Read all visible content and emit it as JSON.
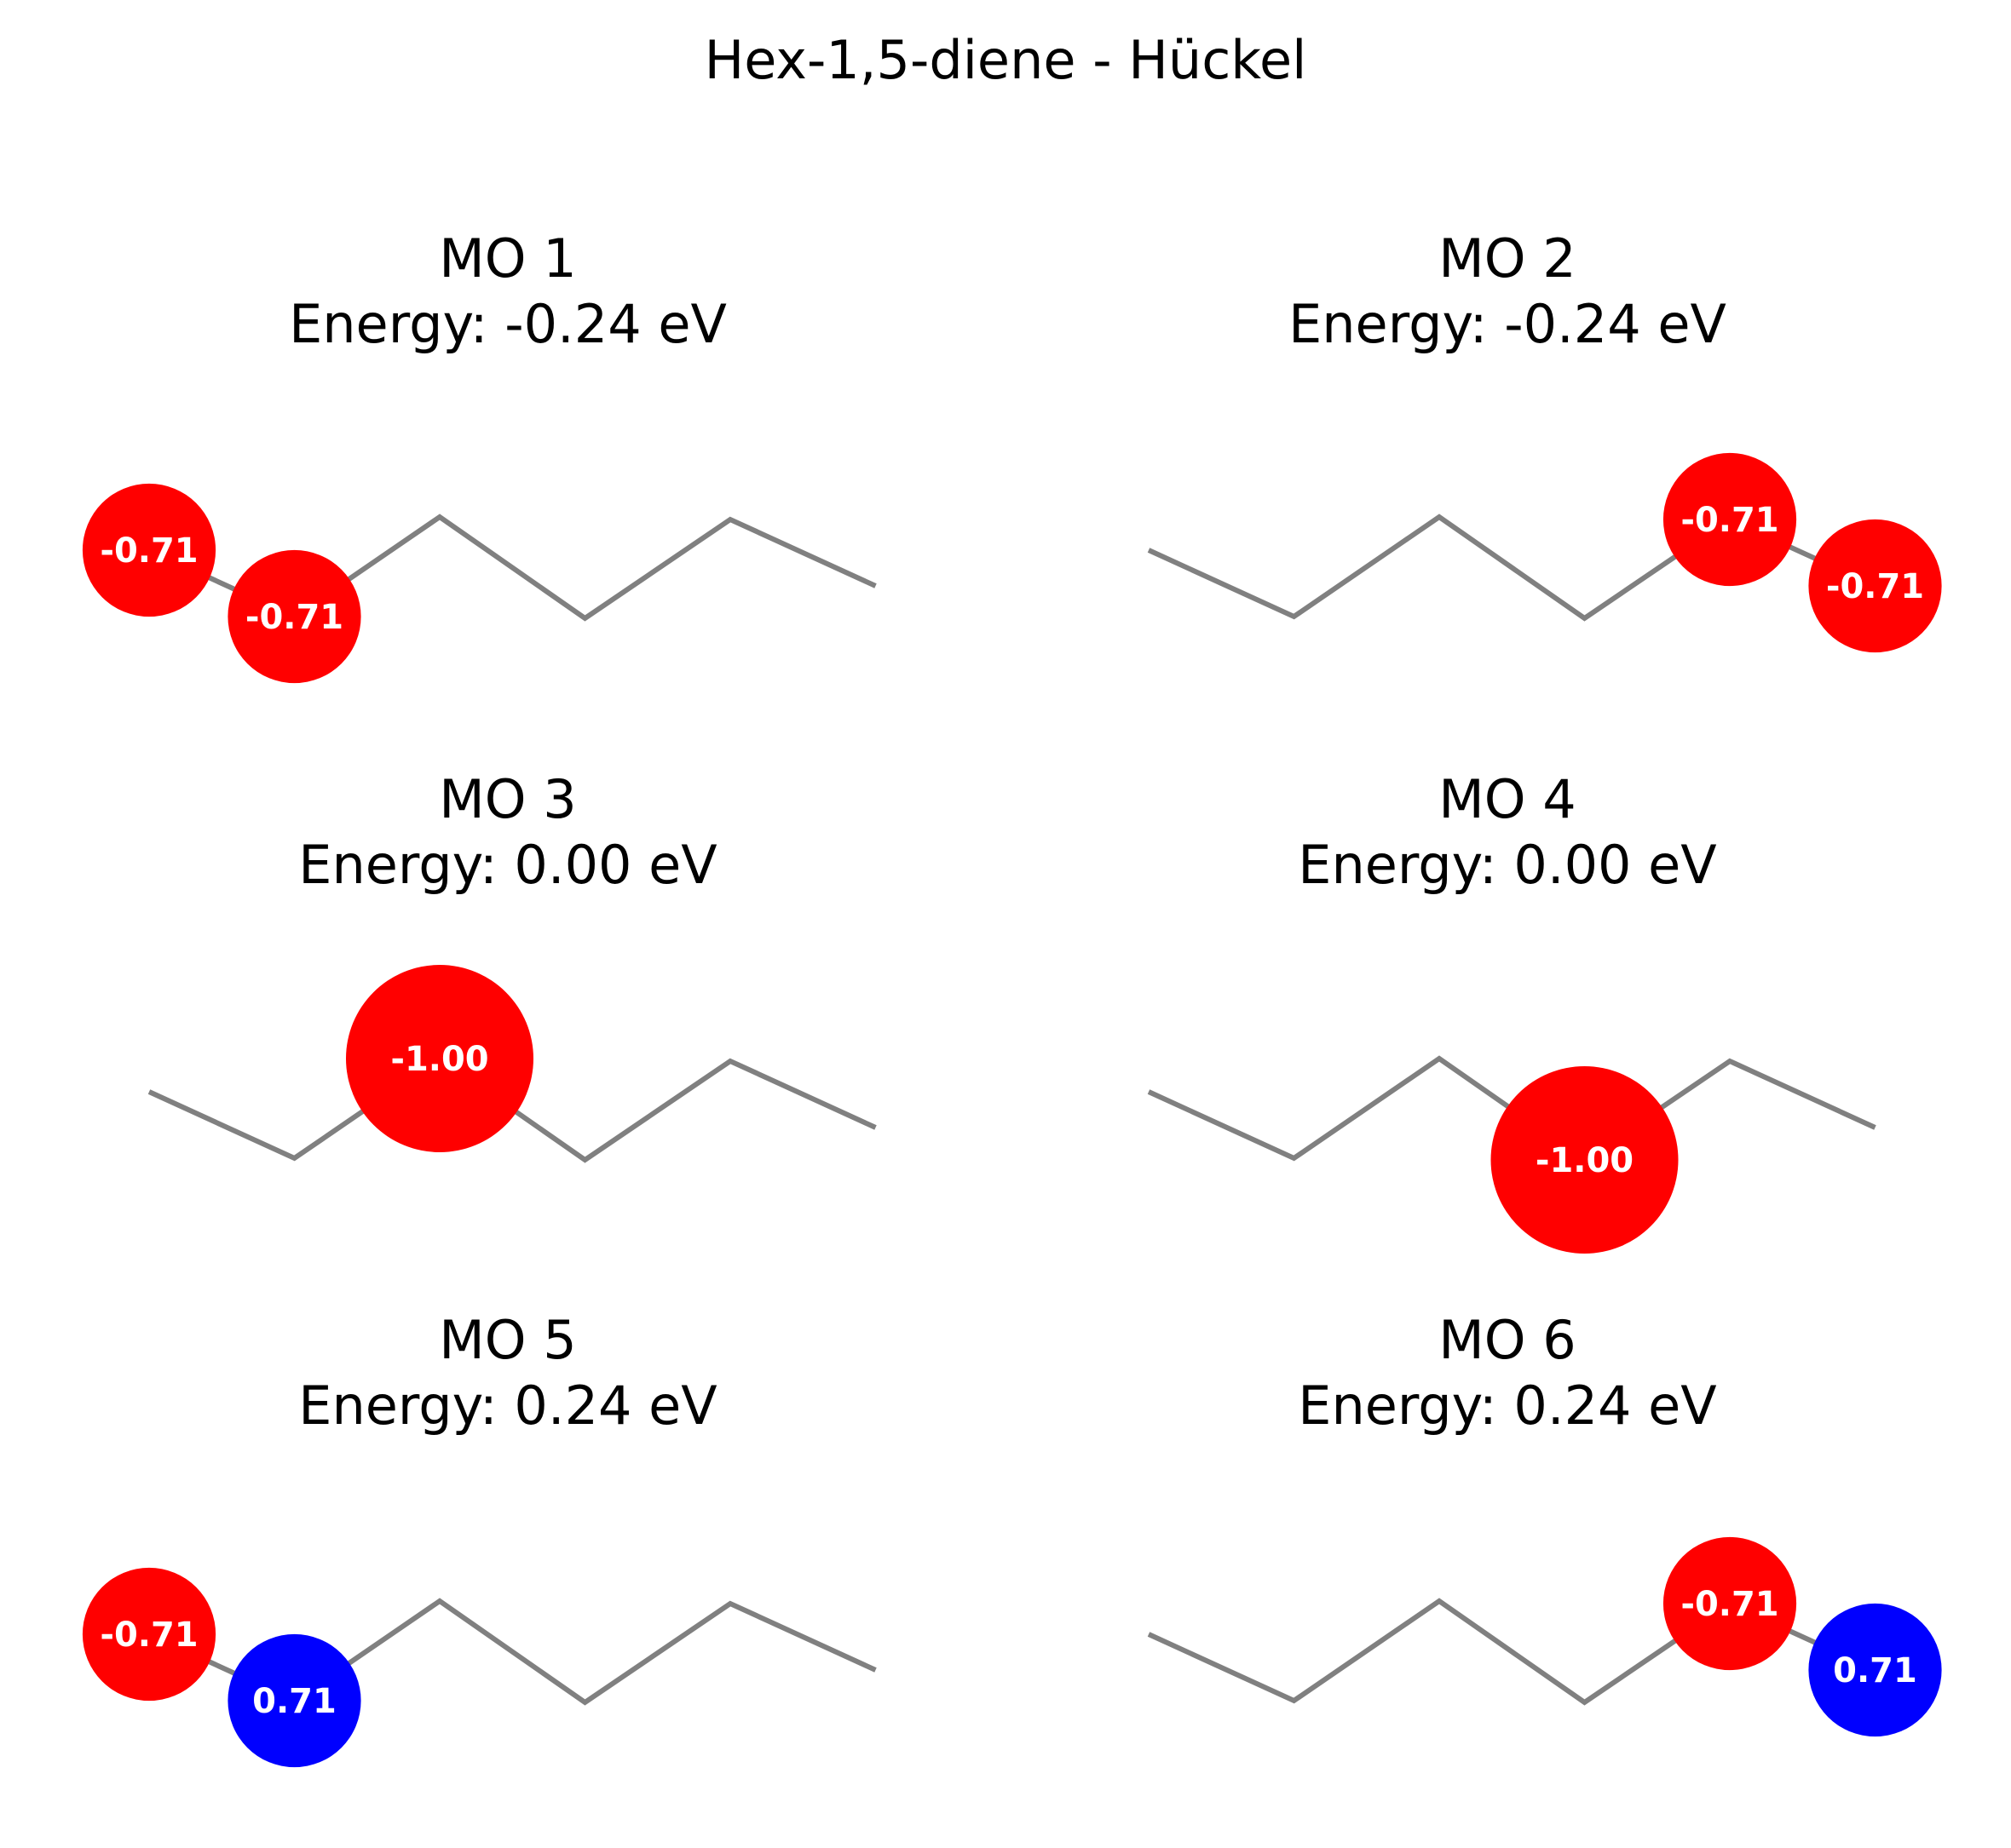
{
  "figure": {
    "title": "Hex-1,5-diene - Hückel"
  },
  "colors": {
    "negative": "#ff0000",
    "positive": "#0000ff",
    "bond": "#808080",
    "label": "#ffffff"
  },
  "orbitals": [
    {
      "title_line1": "MO 1",
      "title_line2": "Energy: -0.24 eV",
      "energy_ev": -0.24,
      "coefficients": [
        -0.71,
        -0.71,
        0.0,
        0.0,
        0.0,
        0.0
      ],
      "labels": [
        "-0.71",
        "-0.71",
        "",
        "",
        "",
        ""
      ]
    },
    {
      "title_line1": "MO 2",
      "title_line2": "Energy: -0.24 eV",
      "energy_ev": -0.24,
      "coefficients": [
        0.0,
        0.0,
        0.0,
        0.0,
        -0.71,
        -0.71
      ],
      "labels": [
        "",
        "",
        "",
        "",
        "-0.71",
        "-0.71"
      ]
    },
    {
      "title_line1": "MO 3",
      "title_line2": "Energy: 0.00 eV",
      "energy_ev": 0.0,
      "coefficients": [
        0.0,
        0.0,
        -1.0,
        0.0,
        0.0,
        0.0
      ],
      "labels": [
        "",
        "",
        "-1.00",
        "",
        "",
        ""
      ]
    },
    {
      "title_line1": "MO 4",
      "title_line2": "Energy: 0.00 eV",
      "energy_ev": 0.0,
      "coefficients": [
        0.0,
        0.0,
        0.0,
        -1.0,
        0.0,
        0.0
      ],
      "labels": [
        "",
        "",
        "",
        "-1.00",
        "",
        ""
      ]
    },
    {
      "title_line1": "MO 5",
      "title_line2": "Energy: 0.24 eV",
      "energy_ev": 0.24,
      "coefficients": [
        -0.71,
        0.71,
        0.0,
        0.0,
        0.0,
        0.0
      ],
      "labels": [
        "-0.71",
        "0.71",
        "",
        "",
        "",
        ""
      ]
    },
    {
      "title_line1": "MO 6",
      "title_line2": "Energy: 0.24 eV",
      "energy_ev": 0.24,
      "coefficients": [
        0.0,
        0.0,
        0.0,
        0.0,
        -0.71,
        0.71
      ],
      "labels": [
        "",
        "",
        "",
        "",
        "-0.71",
        "0.71"
      ]
    }
  ]
}
